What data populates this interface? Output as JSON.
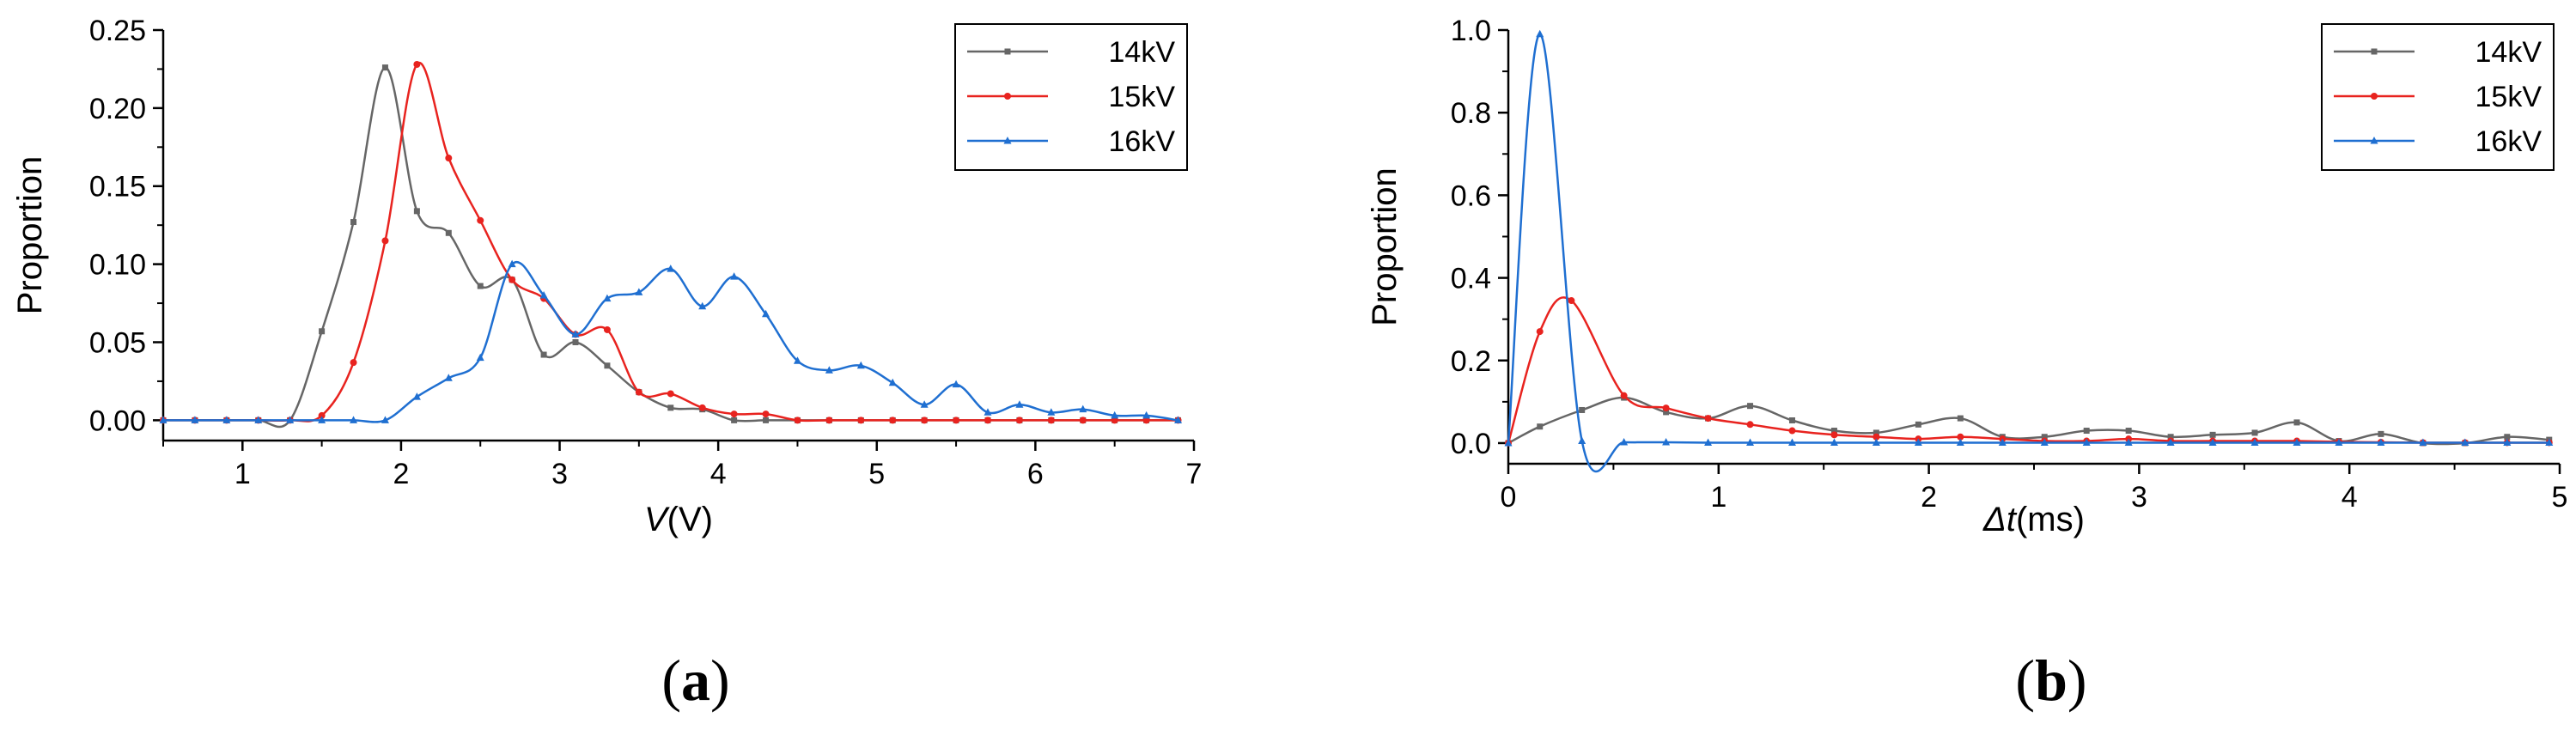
{
  "chart_data": [
    {
      "type": "line",
      "panel_label": "a",
      "xlabel_var": "V",
      "xlabel_unit": "(V)",
      "ylabel": "Proportion",
      "xlim": [
        0.5,
        7
      ],
      "ylim": [
        -0.013,
        0.25
      ],
      "xticks": [
        1,
        2,
        3,
        4,
        5,
        6,
        7
      ],
      "xtick_labels": [
        "1",
        "2",
        "3",
        "4",
        "5",
        "6",
        "7"
      ],
      "yticks": [
        0,
        0.05,
        0.1,
        0.15,
        0.2,
        0.25
      ],
      "ytick_labels": [
        "0.00",
        "0.05",
        "0.10",
        "0.15",
        "0.20",
        "0.25"
      ],
      "legend_position": "top-right",
      "series": [
        {
          "name": "14kV",
          "color": "#666666",
          "marker": "square",
          "x": [
            0.5,
            0.7,
            0.9,
            1.1,
            1.3,
            1.5,
            1.7,
            1.9,
            2.1,
            2.3,
            2.5,
            2.7,
            2.9,
            3.1,
            3.3,
            3.5,
            3.7,
            3.9,
            4.1,
            4.3,
            4.5,
            4.7,
            4.9,
            5.1,
            5.3,
            5.5,
            5.7,
            5.9,
            6.1,
            6.3,
            6.5,
            6.7,
            6.9
          ],
          "y": [
            0,
            0,
            0,
            0,
            0,
            0.057,
            0.127,
            0.226,
            0.134,
            0.12,
            0.086,
            0.09,
            0.042,
            0.05,
            0.035,
            0.018,
            0.008,
            0.007,
            0,
            0,
            0,
            0,
            0,
            0,
            0,
            0,
            0,
            0,
            0,
            0,
            0,
            0,
            0
          ]
        },
        {
          "name": "15kV",
          "color": "#e8231f",
          "marker": "circle",
          "x": [
            0.5,
            0.7,
            0.9,
            1.1,
            1.3,
            1.5,
            1.7,
            1.9,
            2.1,
            2.3,
            2.5,
            2.7,
            2.9,
            3.1,
            3.3,
            3.5,
            3.7,
            3.9,
            4.1,
            4.3,
            4.5,
            4.7,
            4.9,
            5.1,
            5.3,
            5.5,
            5.7,
            5.9,
            6.1,
            6.3,
            6.5,
            6.7,
            6.9
          ],
          "y": [
            0,
            0,
            0,
            0,
            0,
            0.003,
            0.037,
            0.115,
            0.228,
            0.168,
            0.128,
            0.09,
            0.078,
            0.055,
            0.058,
            0.018,
            0.017,
            0.008,
            0.004,
            0.004,
            0,
            0,
            0,
            0,
            0,
            0,
            0,
            0,
            0,
            0,
            0,
            0,
            0
          ]
        },
        {
          "name": "16kV",
          "color": "#1f6fd1",
          "marker": "triangle",
          "x": [
            0.5,
            0.7,
            0.9,
            1.1,
            1.3,
            1.5,
            1.7,
            1.9,
            2.1,
            2.3,
            2.5,
            2.7,
            2.9,
            3.1,
            3.3,
            3.5,
            3.7,
            3.9,
            4.1,
            4.3,
            4.5,
            4.7,
            4.9,
            5.1,
            5.3,
            5.5,
            5.7,
            5.9,
            6.1,
            6.3,
            6.5,
            6.7,
            6.9
          ],
          "y": [
            0,
            0,
            0,
            0,
            0,
            0,
            0,
            0,
            0.015,
            0.027,
            0.04,
            0.1,
            0.08,
            0.055,
            0.078,
            0.082,
            0.097,
            0.073,
            0.092,
            0.068,
            0.038,
            0.032,
            0.035,
            0.024,
            0.01,
            0.023,
            0.005,
            0.01,
            0.005,
            0.007,
            0.003,
            0.003,
            0
          ]
        }
      ]
    },
    {
      "type": "line",
      "panel_label": "b",
      "xlabel_var": "Δt",
      "xlabel_unit": "(ms)",
      "ylabel": "Proportion",
      "xlim": [
        0,
        5
      ],
      "ylim": [
        -0.05,
        1.0
      ],
      "xticks": [
        0,
        1,
        2,
        3,
        4,
        5
      ],
      "xtick_labels": [
        "0",
        "1",
        "2",
        "3",
        "4",
        "5"
      ],
      "yticks": [
        0,
        0.2,
        0.4,
        0.6,
        0.8,
        1.0
      ],
      "ytick_labels": [
        "0.0",
        "0.2",
        "0.4",
        "0.6",
        "0.8",
        "1.0"
      ],
      "legend_position": "top-right",
      "series": [
        {
          "name": "14kV",
          "color": "#666666",
          "marker": "square",
          "x": [
            0,
            0.15,
            0.35,
            0.55,
            0.75,
            0.95,
            1.15,
            1.35,
            1.55,
            1.75,
            1.95,
            2.15,
            2.35,
            2.55,
            2.75,
            2.95,
            3.15,
            3.35,
            3.55,
            3.75,
            3.95,
            4.15,
            4.35,
            4.55,
            4.75,
            4.95
          ],
          "y": [
            0,
            0.04,
            0.08,
            0.11,
            0.075,
            0.06,
            0.09,
            0.055,
            0.03,
            0.025,
            0.045,
            0.06,
            0.015,
            0.015,
            0.03,
            0.03,
            0.015,
            0.02,
            0.025,
            0.05,
            0.005,
            0.022,
            0,
            0,
            0.015,
            0.008
          ]
        },
        {
          "name": "15kV",
          "color": "#e8231f",
          "marker": "circle",
          "x": [
            0,
            0.15,
            0.3,
            0.55,
            0.75,
            0.95,
            1.15,
            1.35,
            1.55,
            1.75,
            1.95,
            2.15,
            2.35,
            2.55,
            2.75,
            2.95,
            3.15,
            3.35,
            3.55,
            3.75,
            3.95,
            4.15,
            4.35,
            4.55,
            4.75,
            4.95
          ],
          "y": [
            0,
            0.27,
            0.345,
            0.115,
            0.085,
            0.06,
            0.045,
            0.03,
            0.02,
            0.015,
            0.01,
            0.015,
            0.01,
            0.005,
            0.005,
            0.01,
            0.005,
            0.005,
            0.005,
            0.005,
            0.003,
            0.002,
            0.001,
            0.001,
            0.001,
            0.001
          ]
        },
        {
          "name": "16kV",
          "color": "#1f6fd1",
          "marker": "triangle",
          "x": [
            0,
            0.15,
            0.35,
            0.55,
            0.75,
            0.95,
            1.15,
            1.35,
            1.55,
            1.75,
            1.95,
            2.15,
            2.35,
            2.55,
            2.75,
            2.95,
            3.15,
            3.35,
            3.55,
            3.75,
            3.95,
            4.15,
            4.35,
            4.55,
            4.75,
            4.95
          ],
          "y": [
            0,
            0.99,
            0.005,
            0.002,
            0.002,
            0.001,
            0.001,
            0.001,
            0.001,
            0.001,
            0.001,
            0.001,
            0.001,
            0.001,
            0.001,
            0.001,
            0.001,
            0.001,
            0.001,
            0.001,
            0.001,
            0.001,
            0.001,
            0.001,
            0.001,
            0.001
          ]
        }
      ]
    }
  ]
}
